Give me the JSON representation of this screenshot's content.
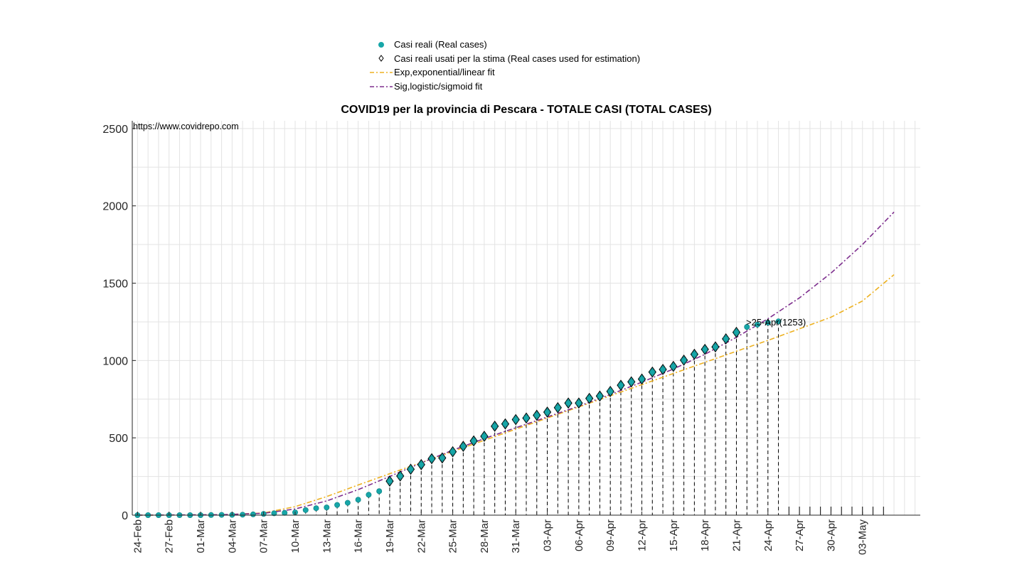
{
  "chart_data": {
    "type": "scatter",
    "title": "COVID19 per la provincia di Pescara - TOTALE CASI (TOTAL CASES)",
    "watermark": "https://www.covidrepo.com",
    "xlabel": "",
    "ylabel": "",
    "ylim": [
      0,
      2550
    ],
    "yticks": [
      0,
      500,
      1000,
      1500,
      2000,
      2500
    ],
    "xlim_day_index": [
      -0.5,
      74.5
    ],
    "x_start_date": "24-Feb",
    "xtick_labels": [
      "24-Feb",
      "27-Feb",
      "01-Mar",
      "04-Mar",
      "07-Mar",
      "10-Mar",
      "13-Mar",
      "16-Mar",
      "19-Mar",
      "22-Mar",
      "25-Mar",
      "28-Mar",
      "31-Mar",
      "03-Apr",
      "06-Apr",
      "09-Apr",
      "12-Apr",
      "15-Apr",
      "18-Apr",
      "21-Apr",
      "24-Apr",
      "27-Apr",
      "30-Apr",
      "03-May"
    ],
    "grid": true,
    "legend_position": "top-center",
    "legend": [
      {
        "label": "Casi reali (Real cases)",
        "marker": "filled-circle",
        "color": "#17a6a8"
      },
      {
        "label": "Casi reali usati per la stima (Real cases used for estimation)",
        "marker": "diamond",
        "color": "#000000"
      },
      {
        "label": "Exp,exponential/linear fit",
        "marker": "dash-dot-line",
        "color": "#edb120"
      },
      {
        "label": "Sig,logistic/sigmoid fit",
        "marker": "dash-dot-line",
        "color": "#7e2f8e"
      }
    ],
    "annotation": ">25-Apr(1253)",
    "series": [
      {
        "name": "Casi reali (Real cases)",
        "color": "#17a6a8",
        "x": [
          "24-Feb",
          "25-Feb",
          "26-Feb",
          "27-Feb",
          "28-Feb",
          "29-Feb",
          "01-Mar",
          "02-Mar",
          "03-Mar",
          "04-Mar",
          "05-Mar",
          "06-Mar",
          "07-Mar",
          "08-Mar",
          "09-Mar",
          "10-Mar",
          "11-Mar",
          "12-Mar",
          "13-Mar",
          "14-Mar",
          "15-Mar",
          "16-Mar",
          "17-Mar",
          "18-Mar",
          "19-Mar",
          "20-Mar",
          "21-Mar",
          "22-Mar",
          "23-Mar",
          "24-Mar",
          "25-Mar",
          "26-Mar",
          "27-Mar",
          "28-Mar",
          "29-Mar",
          "30-Mar",
          "31-Mar",
          "01-Apr",
          "02-Apr",
          "03-Apr",
          "04-Apr",
          "05-Apr",
          "06-Apr",
          "07-Apr",
          "08-Apr",
          "09-Apr",
          "10-Apr",
          "11-Apr",
          "12-Apr",
          "13-Apr",
          "14-Apr",
          "15-Apr",
          "16-Apr",
          "17-Apr",
          "18-Apr",
          "19-Apr",
          "20-Apr",
          "21-Apr",
          "22-Apr",
          "23-Apr",
          "24-Apr",
          "25-Apr"
        ],
        "values": [
          0,
          0,
          0,
          0,
          0,
          0,
          0,
          1,
          2,
          2,
          3,
          5,
          8,
          12,
          15,
          18,
          33,
          45,
          50,
          66,
          80,
          100,
          132,
          155,
          220,
          253,
          297,
          327,
          365,
          370,
          410,
          445,
          480,
          510,
          575,
          590,
          618,
          628,
          646,
          666,
          695,
          725,
          725,
          755,
          770,
          800,
          840,
          862,
          880,
          925,
          942,
          962,
          1002,
          1040,
          1072,
          1088,
          1140,
          1182,
          1217,
          1232,
          1245,
          1253
        ]
      },
      {
        "name": "Casi reali usati per la stima (Real cases used for estimation)",
        "color": "#000000",
        "x": [
          "19-Mar",
          "20-Mar",
          "21-Mar",
          "22-Mar",
          "23-Mar",
          "24-Mar",
          "25-Mar",
          "26-Mar",
          "27-Mar",
          "28-Mar",
          "29-Mar",
          "30-Mar",
          "31-Mar",
          "01-Apr",
          "02-Apr",
          "03-Apr",
          "04-Apr",
          "05-Apr",
          "06-Apr",
          "07-Apr",
          "08-Apr",
          "09-Apr",
          "10-Apr",
          "11-Apr",
          "12-Apr",
          "13-Apr",
          "14-Apr",
          "15-Apr",
          "16-Apr",
          "17-Apr",
          "18-Apr",
          "19-Apr",
          "20-Apr",
          "21-Apr"
        ],
        "values": [
          220,
          253,
          297,
          327,
          365,
          370,
          410,
          445,
          480,
          510,
          575,
          590,
          618,
          628,
          646,
          666,
          695,
          725,
          725,
          755,
          770,
          800,
          840,
          862,
          880,
          925,
          942,
          962,
          1002,
          1040,
          1072,
          1088,
          1140,
          1182
        ]
      },
      {
        "name": "Exp,exponential/linear fit",
        "color": "#edb120",
        "x": [
          "24-Feb",
          "03-Mar",
          "07-Mar",
          "10-Mar",
          "13-Mar",
          "16-Mar",
          "19-Mar",
          "22-Mar",
          "25-Mar",
          "28-Mar",
          "31-Mar",
          "03-Apr",
          "06-Apr",
          "09-Apr",
          "12-Apr",
          "15-Apr",
          "18-Apr",
          "21-Apr",
          "24-Apr",
          "27-Apr",
          "30-Apr",
          "03-May",
          "06-May"
        ],
        "values": [
          0,
          2,
          14,
          55,
          120,
          195,
          268,
          340,
          412,
          484,
          556,
          628,
          700,
          772,
          844,
          916,
          988,
          1060,
          1130,
          1205,
          1280,
          1385,
          1555
        ]
      },
      {
        "name": "Sig,logistic/sigmoid fit",
        "color": "#7e2f8e",
        "x": [
          "24-Feb",
          "03-Mar",
          "07-Mar",
          "10-Mar",
          "13-Mar",
          "16-Mar",
          "19-Mar",
          "22-Mar",
          "25-Mar",
          "28-Mar",
          "31-Mar",
          "03-Apr",
          "06-Apr",
          "09-Apr",
          "12-Apr",
          "15-Apr",
          "18-Apr",
          "21-Apr",
          "24-Apr",
          "27-Apr",
          "30-Apr",
          "03-May",
          "06-May"
        ],
        "values": [
          0,
          3,
          12,
          40,
          92,
          165,
          250,
          338,
          420,
          495,
          565,
          635,
          705,
          780,
          860,
          945,
          1040,
          1150,
          1270,
          1405,
          1565,
          1750,
          1960
        ]
      }
    ]
  }
}
